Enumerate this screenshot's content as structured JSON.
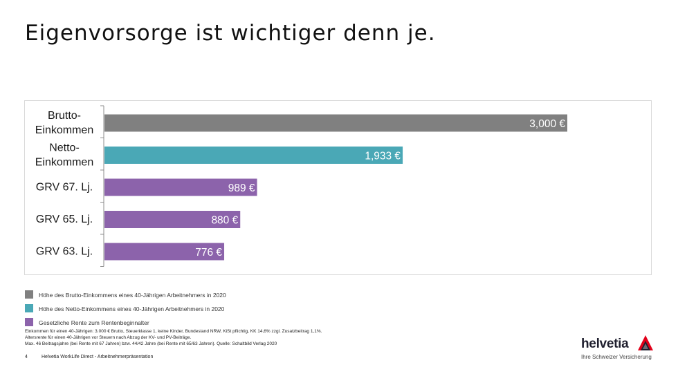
{
  "page": {
    "title": "Eigenvorsorge ist wichtiger denn je.",
    "page_number": "4",
    "footer_text": "Helvetia WorkLife Direct - Arbeitnehmerpräsentation"
  },
  "chart_data": {
    "type": "bar",
    "orientation": "horizontal",
    "title": "",
    "xlabel": "",
    "ylabel": "",
    "xlim": [
      0,
      3000
    ],
    "grid": false,
    "categories": [
      "Brutto-\nEinkommen",
      "Netto-\nEinkommen",
      "GRV 67. Lj.",
      "GRV 65. Lj.",
      "GRV 63. Lj."
    ],
    "values": [
      3000,
      1933,
      989,
      880,
      776
    ],
    "value_labels": [
      "3,000 €",
      "1,933 €",
      "989 €",
      "880 €",
      "776 €"
    ],
    "bar_colors": [
      "#808080",
      "#4aa8b6",
      "#8c63ab",
      "#8c63ab",
      "#8c63ab"
    ]
  },
  "legend": [
    {
      "label": "Höhe des Brutto-Einkommens eines 40-Jährigen Arbeitnehmers in 2020",
      "color": "#808080"
    },
    {
      "label": "Höhe des Netto-Einkommens eines 40-Jährigen Arbeitnehmers in 2020",
      "color": "#4aa8b6"
    },
    {
      "label": "Gesetzliche Rente zum Rentenbeginnalter",
      "color": "#8c63ab"
    }
  ],
  "footnote": {
    "line1": "Einkommen für einen 40-Jährigen: 3.000 € Brutto, Steuerklasse 1, keine Kinder, Bundesland NRW, KiSt pflichtig, KK 14,6% zzgl. Zusatzbeitrag 1,1%.",
    "line2": "Altersrente für einen 40-Jährigen vor Steuern nach Abzug der KV- und PV-Beiträge.",
    "line3": "Max. 46 Beitragsjahre (bei Rente mit 67 Jahren) bzw. 44/42 Jahre (bei Rente mit 65/63 Jahren). Quelle: Schaltbild Verlag 2020"
  },
  "logo": {
    "name": "helvetia",
    "tagline": "Ihre Schweizer Versicherung",
    "colors": {
      "red": "#e2001a",
      "navy": "#1f1f2e"
    }
  }
}
